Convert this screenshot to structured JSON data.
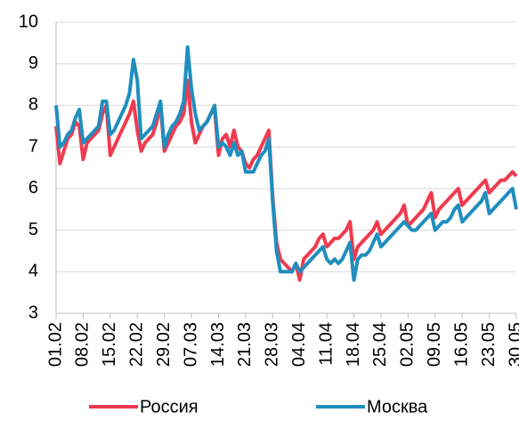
{
  "chart_data": {
    "type": "line",
    "categories": [
      "01.02",
      null,
      null,
      null,
      null,
      null,
      null,
      "08.02",
      null,
      null,
      null,
      null,
      null,
      null,
      "15.02",
      null,
      null,
      null,
      null,
      null,
      null,
      "22.02",
      null,
      null,
      null,
      null,
      null,
      null,
      "29.02",
      null,
      null,
      null,
      null,
      null,
      null,
      "07.03",
      null,
      null,
      null,
      null,
      null,
      null,
      "14.03",
      null,
      null,
      null,
      null,
      null,
      null,
      "21.03",
      null,
      null,
      null,
      null,
      null,
      null,
      "28.03",
      null,
      null,
      null,
      null,
      null,
      null,
      "04.04",
      null,
      null,
      null,
      null,
      null,
      null,
      "11.04",
      null,
      null,
      null,
      null,
      null,
      null,
      "18.04",
      null,
      null,
      null,
      null,
      null,
      null,
      "25.04",
      null,
      null,
      null,
      null,
      null,
      null,
      "02.05",
      null,
      null,
      null,
      null,
      null,
      null,
      "09.05",
      null,
      null,
      null,
      null,
      null,
      null,
      "16.05",
      null,
      null,
      null,
      null,
      null,
      null,
      "23.05",
      null,
      null,
      null,
      null,
      null,
      null,
      "30.05"
    ],
    "series": [
      {
        "name": "Россия",
        "color": "#f03a4f",
        "values": [
          7.5,
          6.6,
          6.9,
          7.2,
          7.3,
          7.6,
          7.5,
          6.7,
          7.1,
          7.2,
          7.3,
          7.4,
          7.8,
          8.0,
          6.8,
          7.0,
          7.2,
          7.4,
          7.6,
          7.8,
          8.1,
          7.4,
          6.9,
          7.1,
          7.2,
          7.3,
          7.6,
          8.0,
          6.9,
          7.1,
          7.3,
          7.5,
          7.6,
          7.8,
          8.6,
          7.6,
          7.1,
          7.3,
          7.5,
          7.6,
          7.8,
          7.9,
          6.8,
          7.2,
          7.3,
          7.0,
          7.4,
          7.0,
          6.9,
          6.6,
          6.5,
          6.7,
          6.8,
          7.0,
          7.2,
          7.4,
          5.8,
          4.7,
          4.3,
          4.2,
          4.1,
          4.0,
          4.2,
          3.8,
          4.3,
          4.4,
          4.5,
          4.6,
          4.8,
          4.9,
          4.6,
          4.7,
          4.8,
          4.8,
          4.9,
          5.0,
          5.2,
          4.3,
          4.6,
          4.7,
          4.8,
          4.9,
          5.0,
          5.2,
          4.9,
          5.0,
          5.1,
          5.2,
          5.3,
          5.4,
          5.6,
          5.1,
          5.2,
          5.3,
          5.4,
          5.5,
          5.7,
          5.9,
          5.3,
          5.5,
          5.6,
          5.7,
          5.8,
          5.9,
          6.0,
          5.6,
          5.7,
          5.8,
          5.9,
          6.0,
          6.1,
          6.2,
          5.9,
          6.0,
          6.1,
          6.2,
          6.2,
          6.3,
          6.4,
          6.3
        ]
      },
      {
        "name": "Москва",
        "color": "#1f8ebf",
        "values": [
          8.0,
          7.0,
          7.1,
          7.3,
          7.4,
          7.7,
          7.9,
          7.1,
          7.2,
          7.3,
          7.4,
          7.5,
          8.1,
          8.1,
          7.3,
          7.4,
          7.6,
          7.8,
          8.0,
          8.3,
          9.1,
          8.6,
          7.2,
          7.3,
          7.4,
          7.5,
          7.8,
          8.1,
          7.0,
          7.3,
          7.5,
          7.6,
          7.8,
          8.1,
          9.4,
          8.4,
          7.8,
          7.4,
          7.5,
          7.6,
          7.8,
          8.0,
          7.0,
          7.1,
          7.0,
          6.8,
          7.1,
          6.8,
          6.9,
          6.4,
          6.4,
          6.4,
          6.6,
          6.8,
          6.9,
          7.2,
          5.7,
          4.5,
          4.0,
          4.0,
          4.0,
          4.0,
          4.2,
          4.0,
          4.1,
          4.2,
          4.3,
          4.4,
          4.5,
          4.6,
          4.3,
          4.2,
          4.3,
          4.2,
          4.3,
          4.5,
          4.7,
          3.8,
          4.3,
          4.4,
          4.4,
          4.5,
          4.7,
          4.9,
          4.6,
          4.7,
          4.8,
          4.9,
          5.0,
          5.1,
          5.2,
          5.1,
          5.0,
          5.0,
          5.1,
          5.2,
          5.3,
          5.4,
          5.0,
          5.1,
          5.2,
          5.2,
          5.3,
          5.5,
          5.6,
          5.2,
          5.3,
          5.4,
          5.5,
          5.6,
          5.7,
          5.9,
          5.4,
          5.5,
          5.6,
          5.7,
          5.8,
          5.9,
          6.0,
          5.5
        ]
      }
    ],
    "ylim": [
      3,
      10
    ],
    "yticks": [
      3,
      4,
      5,
      6,
      7,
      8,
      9,
      10
    ],
    "grid": true,
    "legend": "bottom"
  }
}
